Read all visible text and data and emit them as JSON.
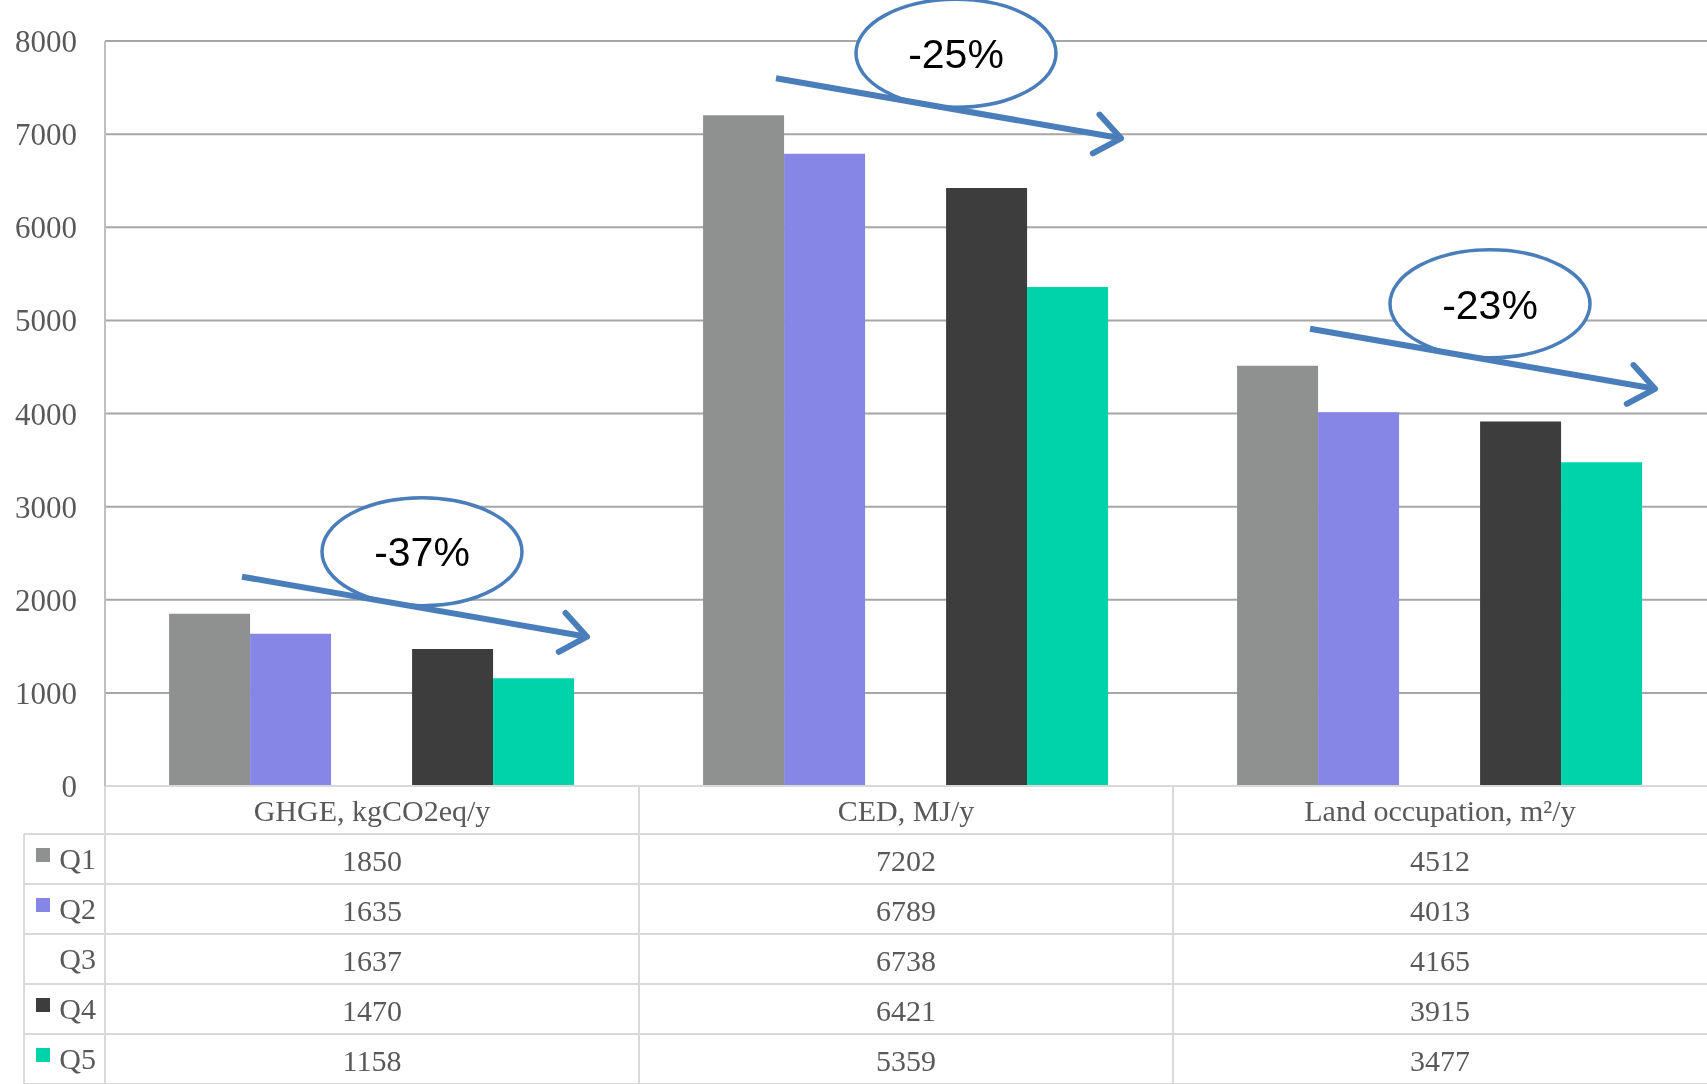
{
  "chart_data": {
    "type": "bar",
    "categories": [
      "GHGE, kgCO2eq/y",
      "CED, MJ/y",
      "Land occupation, m²/y"
    ],
    "series": [
      {
        "name": "Q1",
        "color": "#8e918f",
        "values": [
          1850,
          7202,
          4512
        ],
        "value_labels": [
          "1850",
          "7202",
          "4512"
        ]
      },
      {
        "name": "Q2",
        "color": "#8686e6",
        "values": [
          1635,
          6789,
          4013
        ],
        "value_labels": [
          "1635",
          "6789",
          "4013"
        ]
      },
      {
        "name": "Q3",
        "values": [
          null,
          null,
          null
        ],
        "value_labels": [
          "1637",
          "6738",
          "4165"
        ]
      },
      {
        "name": "Q4",
        "color": "#3d3d3d",
        "values": [
          1470,
          6421,
          3915
        ],
        "value_labels": [
          "1470",
          "6421",
          "3915"
        ]
      },
      {
        "name": "Q5",
        "color": "#00d2aa",
        "values": [
          1158,
          5359,
          3477
        ],
        "value_labels": [
          "1158",
          "5359",
          "3477"
        ]
      }
    ],
    "ylim": [
      0,
      8000
    ],
    "yticks": [
      0,
      1000,
      2000,
      3000,
      4000,
      5000,
      6000,
      7000,
      8000
    ],
    "grid": "y",
    "legend": "bottom",
    "annotations": [
      "-37%",
      "-25%",
      "-23%"
    ]
  }
}
